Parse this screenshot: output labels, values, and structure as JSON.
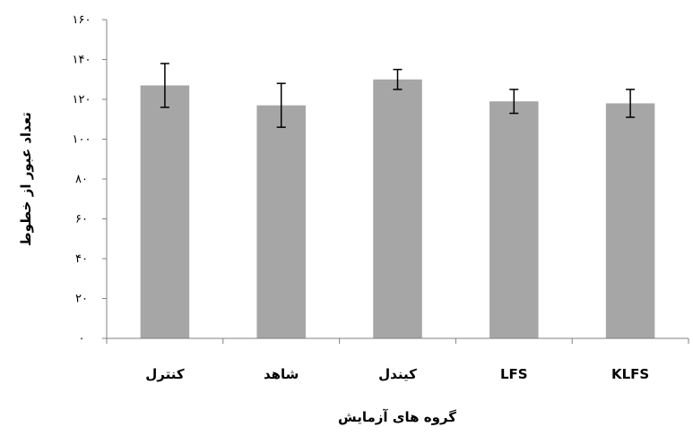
{
  "chart_data": {
    "type": "bar",
    "title": "",
    "xlabel": "گروه های آزمایش",
    "ylabel": "تعداد عبور از خطوط",
    "categories": [
      "کنترل",
      "شاهد",
      "کیندل",
      "LFS",
      "KLFS"
    ],
    "values": [
      127,
      117,
      130,
      119,
      118
    ],
    "error": [
      11,
      11,
      5,
      6,
      7
    ],
    "ylim": [
      0,
      160
    ],
    "yticks": [
      0,
      20,
      40,
      60,
      80,
      100,
      120,
      140,
      160
    ],
    "ytick_labels": [
      "٠",
      "٢٠",
      "۴٠",
      "۶٠",
      "٨٠",
      "١٠٠",
      "١٢٠",
      "١۴٠",
      "١۶٠"
    ],
    "grid": false,
    "colors": {
      "bar": "#a6a6a6",
      "axis": "#808080",
      "error_bar": "#000000"
    }
  }
}
